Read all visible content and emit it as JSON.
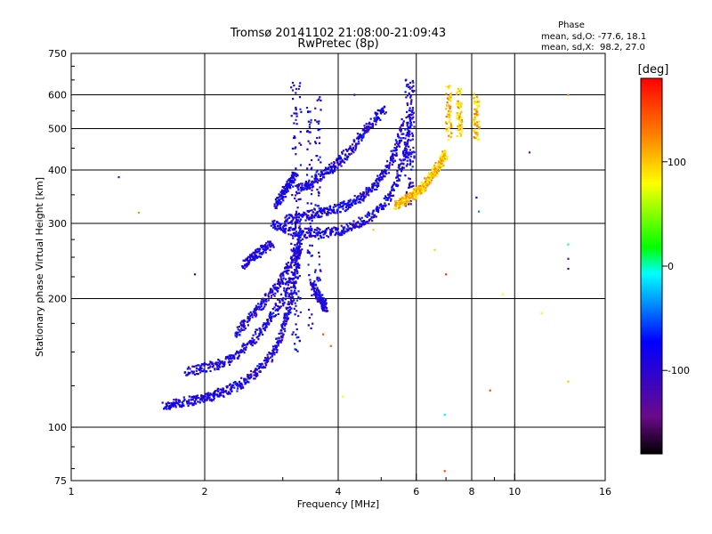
{
  "chart_data": {
    "type": "scatter",
    "title": "Tromsø 20141102 21:08:00-21:09:43",
    "subtitle": "RwPretec (8p)",
    "phase_info": {
      "heading": "Phase",
      "line_o": "mean, sd,O: -77.6, 18.1",
      "line_x": "mean, sd,X:  98.2, 27.0"
    },
    "xlabel": "Frequency [MHz]",
    "ylabel": "Stationary phase Virtual Height [km]",
    "xscale": "log",
    "yscale": "log",
    "xlim": [
      1,
      16
    ],
    "ylim": [
      75,
      750
    ],
    "xticks": [
      1,
      2,
      4,
      6,
      8,
      10,
      16
    ],
    "xtick_labels": [
      "1",
      "2",
      "4",
      "6",
      "8",
      "10",
      "16"
    ],
    "xminor": [
      3,
      5,
      7,
      9
    ],
    "yticks": [
      75,
      100,
      200,
      300,
      400,
      500,
      600,
      750
    ],
    "ytick_labels": [
      "75",
      "100",
      "200",
      "300",
      "400",
      "500",
      "600",
      "750"
    ],
    "grid_x": [
      2,
      4,
      6,
      8,
      10
    ],
    "grid_y": [
      100,
      200,
      300,
      400,
      500,
      600
    ],
    "grid": true,
    "colorbar": {
      "label": "[deg]",
      "range": [
        -180,
        180
      ],
      "ticks": [
        100,
        0,
        -100
      ],
      "tick_labels": [
        "100",
        "0",
        "-100"
      ]
    },
    "series": [
      {
        "role": "O-trace",
        "phase": -90,
        "segments": [
          {
            "f": [
              1.62,
              1.75,
              1.9,
              2.05,
              2.2,
              2.4,
              2.6,
              2.8,
              2.95,
              3.05,
              3.15,
              3.22,
              3.28
            ],
            "h": [
              112,
              114,
              116,
              118,
              121,
              126,
              134,
              145,
              160,
              180,
              205,
              235,
              265
            ]
          },
          {
            "f": [
              1.82,
              2.0,
              2.2,
              2.4,
              2.6,
              2.8,
              3.0,
              3.15
            ],
            "h": [
              135,
              138,
              141,
              150,
              162,
              178,
              200,
              225
            ]
          },
          {
            "f": [
              2.35,
              2.5,
              2.7,
              2.9,
              3.05,
              3.2,
              3.3
            ],
            "h": [
              165,
              178,
              195,
              212,
              232,
              255,
              280
            ]
          },
          {
            "f": [
              2.85,
              3.05,
              3.3,
              3.6,
              3.95,
              4.3,
              4.7,
              5.1,
              5.45,
              5.7,
              5.85
            ],
            "h": [
              300,
              290,
              285,
              284,
              287,
              295,
              310,
              335,
              380,
              450,
              560
            ]
          },
          {
            "f": [
              3.05,
              3.3,
              3.6,
              3.9,
              4.2,
              4.5,
              4.8,
              5.1,
              5.4,
              5.65
            ],
            "h": [
              305,
              312,
              318,
              322,
              332,
              345,
              365,
              395,
              445,
              520
            ]
          },
          {
            "f": [
              3.25,
              3.45,
              3.7,
              3.95,
              4.2,
              4.5,
              4.8,
              5.1
            ],
            "h": [
              360,
              372,
              390,
              410,
              440,
              480,
              520,
              560
            ]
          },
          {
            "f": [
              3.5,
              3.6,
              3.7,
              3.75
            ],
            "h": [
              215,
              205,
              195,
              190
            ]
          },
          {
            "f": [
              2.45,
              2.55,
              2.7,
              2.85
            ],
            "h": [
              240,
              250,
              260,
              270
            ]
          },
          {
            "f": [
              2.9,
              3.0,
              3.1,
              3.2
            ],
            "h": [
              330,
              350,
              370,
              390
            ]
          }
        ],
        "columns": [
          {
            "f": 3.18,
            "h": [
              140,
              660
            ]
          },
          {
            "f": 3.25,
            "h": [
              150,
              640
            ]
          },
          {
            "f": 3.45,
            "h": [
              170,
              560
            ]
          },
          {
            "f": 3.6,
            "h": [
              190,
              600
            ]
          },
          {
            "f": 5.75,
            "h": [
              330,
              660
            ]
          },
          {
            "f": 5.85,
            "h": [
              340,
              650
            ]
          }
        ]
      },
      {
        "role": "X-trace",
        "phase": 100,
        "segments": [
          {
            "f": [
              5.4,
              5.6,
              5.8,
              6.0,
              6.2,
              6.4,
              6.6,
              6.8,
              7.0
            ],
            "h": [
              330,
              338,
              345,
              355,
              365,
              380,
              395,
              415,
              440
            ]
          }
        ],
        "columns": [
          {
            "f": 7.1,
            "h": [
              470,
              640
            ]
          },
          {
            "f": 7.5,
            "h": [
              480,
              620
            ]
          },
          {
            "f": 8.2,
            "h": [
              470,
              620
            ]
          }
        ]
      },
      {
        "role": "scattered",
        "points": [
          {
            "f": 1.28,
            "h": 385,
            "phase": -140
          },
          {
            "f": 1.42,
            "h": 318,
            "phase": 120
          },
          {
            "f": 1.9,
            "h": 228,
            "phase": -100
          },
          {
            "f": 4.35,
            "h": 600,
            "phase": -90
          },
          {
            "f": 4.8,
            "h": 290,
            "phase": 100
          },
          {
            "f": 6.6,
            "h": 260,
            "phase": 60
          },
          {
            "f": 6.95,
            "h": 79,
            "phase": 150
          },
          {
            "f": 6.95,
            "h": 107,
            "phase": -10
          },
          {
            "f": 7.0,
            "h": 228,
            "phase": 160
          },
          {
            "f": 8.2,
            "h": 345,
            "phase": -90
          },
          {
            "f": 8.3,
            "h": 320,
            "phase": -40
          },
          {
            "f": 8.8,
            "h": 122,
            "phase": 150
          },
          {
            "f": 9.4,
            "h": 205,
            "phase": 80
          },
          {
            "f": 11.5,
            "h": 185,
            "phase": 80
          },
          {
            "f": 13.2,
            "h": 268,
            "phase": 0
          },
          {
            "f": 13.2,
            "h": 248,
            "phase": -140
          },
          {
            "f": 13.2,
            "h": 235,
            "phase": -100
          },
          {
            "f": 13.2,
            "h": 128,
            "phase": 100
          },
          {
            "f": 13.2,
            "h": 600,
            "phase": 120
          },
          {
            "f": 10.8,
            "h": 440,
            "phase": -140
          },
          {
            "f": 3.7,
            "h": 165,
            "phase": 150
          },
          {
            "f": 3.85,
            "h": 155,
            "phase": 140
          },
          {
            "f": 4.1,
            "h": 118,
            "phase": 80
          }
        ]
      }
    ]
  }
}
